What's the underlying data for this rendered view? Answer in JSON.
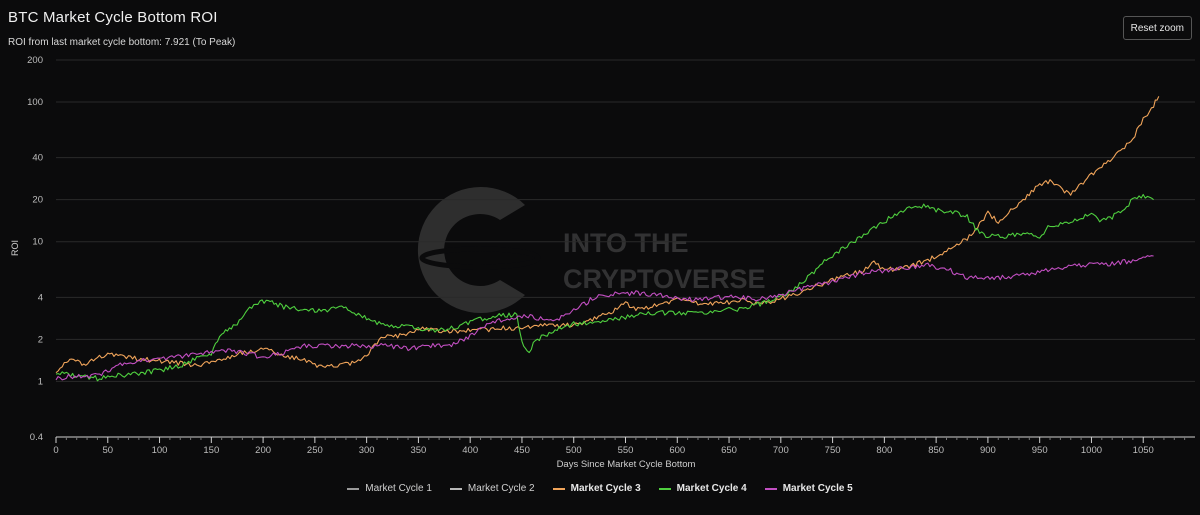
{
  "header": {
    "title": "BTC Market Cycle Bottom ROI",
    "subtitle": "ROI from last market cycle bottom: 7.921 (To Peak)",
    "reset_label": "Reset zoom"
  },
  "watermark": {
    "line1": "INTO THE",
    "line2": "CRYPTOVERSE"
  },
  "colors": {
    "cycle1": "#9a9a9a",
    "cycle2": "#b8b8b8",
    "cycle3": "#f0a45a",
    "cycle4": "#4fcf3f",
    "cycle5": "#c24fc2",
    "grid": "#2a2a2a",
    "axis": "#bdbdbd"
  },
  "chart_data": {
    "type": "line",
    "xlabel": "Days Since Market Cycle Bottom",
    "ylabel": "ROI",
    "yscale": "log",
    "xlim": [
      0,
      1100
    ],
    "ylim": [
      0.4,
      200
    ],
    "x_ticks": [
      0,
      50,
      100,
      150,
      200,
      250,
      300,
      350,
      400,
      450,
      500,
      550,
      600,
      650,
      700,
      750,
      800,
      850,
      900,
      950,
      1000,
      1050
    ],
    "y_ticks": [
      0.4,
      1,
      2,
      4,
      10,
      20,
      40,
      100,
      200
    ],
    "legend_position": "bottom",
    "series": [
      {
        "name": "Market Cycle 1",
        "key": "cycle1",
        "visible": false,
        "points": []
      },
      {
        "name": "Market Cycle 2",
        "key": "cycle2",
        "visible": false,
        "points": []
      },
      {
        "name": "Market Cycle 3",
        "key": "cycle3",
        "visible": true,
        "points": [
          [
            0,
            1.2
          ],
          [
            10,
            1.35
          ],
          [
            15,
            1.5
          ],
          [
            25,
            1.3
          ],
          [
            40,
            1.45
          ],
          [
            50,
            1.6
          ],
          [
            60,
            1.5
          ],
          [
            80,
            1.45
          ],
          [
            100,
            1.4
          ],
          [
            120,
            1.35
          ],
          [
            140,
            1.3
          ],
          [
            160,
            1.45
          ],
          [
            180,
            1.6
          ],
          [
            200,
            1.7
          ],
          [
            220,
            1.55
          ],
          [
            240,
            1.4
          ],
          [
            250,
            1.3
          ],
          [
            270,
            1.3
          ],
          [
            290,
            1.35
          ],
          [
            300,
            1.5
          ],
          [
            310,
            1.9
          ],
          [
            320,
            2.2
          ],
          [
            330,
            2.1
          ],
          [
            340,
            2.2
          ],
          [
            350,
            2.4
          ],
          [
            370,
            2.3
          ],
          [
            400,
            2.3
          ],
          [
            430,
            2.4
          ],
          [
            450,
            2.4
          ],
          [
            470,
            2.5
          ],
          [
            490,
            2.5
          ],
          [
            510,
            2.6
          ],
          [
            530,
            3.0
          ],
          [
            550,
            3.6
          ],
          [
            560,
            3.3
          ],
          [
            580,
            3.5
          ],
          [
            600,
            3.8
          ],
          [
            620,
            3.6
          ],
          [
            640,
            3.6
          ],
          [
            660,
            3.8
          ],
          [
            680,
            3.6
          ],
          [
            700,
            3.9
          ],
          [
            720,
            4.4
          ],
          [
            740,
            5.0
          ],
          [
            760,
            5.6
          ],
          [
            780,
            6.2
          ],
          [
            790,
            7.0
          ],
          [
            800,
            6.3
          ],
          [
            820,
            6.5
          ],
          [
            840,
            7.3
          ],
          [
            860,
            8.5
          ],
          [
            880,
            10.5
          ],
          [
            890,
            13
          ],
          [
            900,
            16
          ],
          [
            910,
            14
          ],
          [
            920,
            16
          ],
          [
            940,
            22
          ],
          [
            950,
            26
          ],
          [
            960,
            27
          ],
          [
            970,
            24
          ],
          [
            980,
            22
          ],
          [
            990,
            26
          ],
          [
            1000,
            30
          ],
          [
            1010,
            35
          ],
          [
            1020,
            40
          ],
          [
            1030,
            45
          ],
          [
            1040,
            55
          ],
          [
            1050,
            75
          ],
          [
            1060,
            95
          ],
          [
            1065,
            110
          ]
        ]
      },
      {
        "name": "Market Cycle 4",
        "key": "cycle4",
        "visible": true,
        "points": [
          [
            0,
            1.15
          ],
          [
            20,
            1.1
          ],
          [
            40,
            1.05
          ],
          [
            60,
            1.1
          ],
          [
            80,
            1.15
          ],
          [
            100,
            1.2
          ],
          [
            120,
            1.3
          ],
          [
            140,
            1.5
          ],
          [
            150,
            1.6
          ],
          [
            160,
            2.2
          ],
          [
            175,
            2.6
          ],
          [
            185,
            3.2
          ],
          [
            195,
            3.7
          ],
          [
            205,
            3.8
          ],
          [
            220,
            3.4
          ],
          [
            240,
            3.3
          ],
          [
            260,
            3.2
          ],
          [
            280,
            3.4
          ],
          [
            300,
            2.8
          ],
          [
            320,
            2.5
          ],
          [
            340,
            2.5
          ],
          [
            350,
            2.4
          ],
          [
            370,
            2.3
          ],
          [
            390,
            2.5
          ],
          [
            410,
            2.8
          ],
          [
            430,
            3.0
          ],
          [
            445,
            3.0
          ],
          [
            450,
            1.9
          ],
          [
            455,
            1.6
          ],
          [
            465,
            2.0
          ],
          [
            480,
            2.3
          ],
          [
            500,
            2.6
          ],
          [
            520,
            2.6
          ],
          [
            540,
            2.8
          ],
          [
            560,
            3.0
          ],
          [
            580,
            3.1
          ],
          [
            600,
            3.1
          ],
          [
            620,
            3.1
          ],
          [
            640,
            3.2
          ],
          [
            660,
            3.3
          ],
          [
            680,
            3.6
          ],
          [
            700,
            4.0
          ],
          [
            720,
            5.0
          ],
          [
            740,
            7.0
          ],
          [
            760,
            9.0
          ],
          [
            780,
            11
          ],
          [
            800,
            14
          ],
          [
            820,
            17
          ],
          [
            840,
            18
          ],
          [
            860,
            16
          ],
          [
            870,
            16
          ],
          [
            880,
            15
          ],
          [
            890,
            12
          ],
          [
            900,
            11
          ],
          [
            920,
            11
          ],
          [
            940,
            11.5
          ],
          [
            950,
            11
          ],
          [
            960,
            13
          ],
          [
            980,
            14
          ],
          [
            1000,
            16
          ],
          [
            1010,
            14
          ],
          [
            1020,
            15
          ],
          [
            1030,
            17
          ],
          [
            1040,
            20
          ],
          [
            1050,
            21
          ],
          [
            1060,
            20
          ]
        ]
      },
      {
        "name": "Market Cycle 5",
        "key": "cycle5",
        "visible": true,
        "points": [
          [
            0,
            1.05
          ],
          [
            20,
            1.1
          ],
          [
            40,
            1.1
          ],
          [
            60,
            1.3
          ],
          [
            80,
            1.4
          ],
          [
            100,
            1.45
          ],
          [
            120,
            1.5
          ],
          [
            140,
            1.6
          ],
          [
            160,
            1.7
          ],
          [
            180,
            1.6
          ],
          [
            200,
            1.5
          ],
          [
            220,
            1.6
          ],
          [
            240,
            1.8
          ],
          [
            260,
            1.8
          ],
          [
            280,
            1.8
          ],
          [
            300,
            1.8
          ],
          [
            320,
            1.8
          ],
          [
            340,
            1.7
          ],
          [
            360,
            1.8
          ],
          [
            380,
            1.8
          ],
          [
            400,
            2.1
          ],
          [
            420,
            2.6
          ],
          [
            440,
            2.9
          ],
          [
            460,
            2.9
          ],
          [
            480,
            2.7
          ],
          [
            500,
            3.2
          ],
          [
            520,
            4.0
          ],
          [
            540,
            4.2
          ],
          [
            560,
            4.3
          ],
          [
            580,
            4.2
          ],
          [
            600,
            4.0
          ],
          [
            620,
            3.8
          ],
          [
            640,
            4.0
          ],
          [
            660,
            4.0
          ],
          [
            680,
            3.9
          ],
          [
            700,
            4.2
          ],
          [
            720,
            4.6
          ],
          [
            740,
            5.0
          ],
          [
            760,
            5.4
          ],
          [
            780,
            6.0
          ],
          [
            800,
            6.2
          ],
          [
            820,
            6.5
          ],
          [
            840,
            6.8
          ],
          [
            860,
            6.4
          ],
          [
            880,
            5.5
          ],
          [
            900,
            5.5
          ],
          [
            920,
            5.6
          ],
          [
            940,
            5.8
          ],
          [
            960,
            6.3
          ],
          [
            980,
            6.8
          ],
          [
            1000,
            6.8
          ],
          [
            1020,
            7.0
          ],
          [
            1040,
            7.3
          ],
          [
            1060,
            7.9
          ]
        ]
      }
    ]
  }
}
